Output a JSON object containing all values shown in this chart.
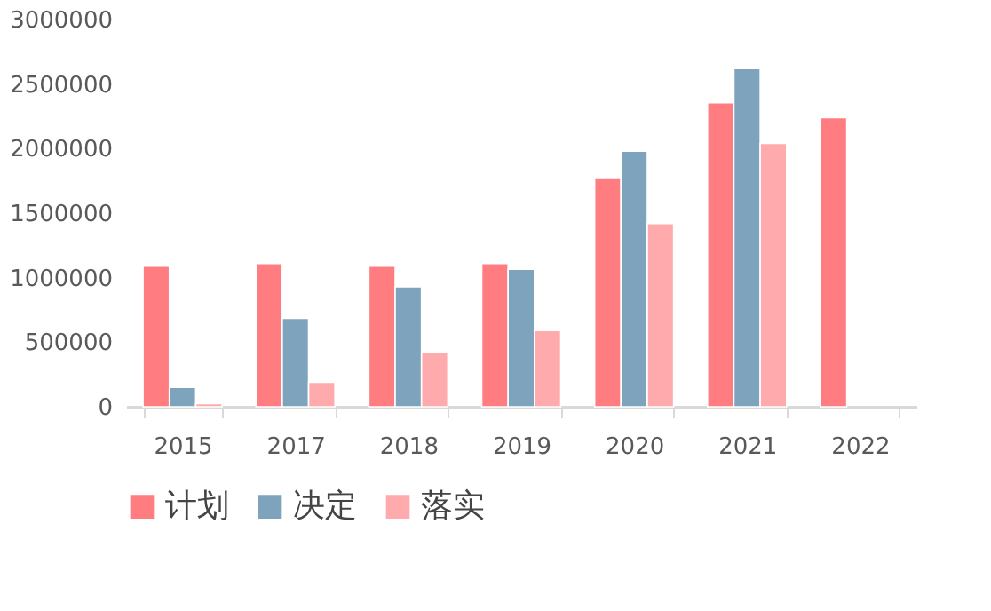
{
  "chart_data": {
    "type": "bar",
    "categories": [
      "2015",
      "2017",
      "2018",
      "2019",
      "2020",
      "2021",
      "2022"
    ],
    "series": [
      {
        "name": "计划",
        "color": "#ff7c80",
        "values": [
          1090000,
          1110000,
          1090000,
          1110000,
          1775000,
          2355000,
          2240000
        ]
      },
      {
        "name": "决定",
        "color": "#7ea3bc",
        "values": [
          150000,
          685000,
          930000,
          1065000,
          1980000,
          2620000,
          null
        ]
      },
      {
        "name": "落实",
        "color": "#ffaaad",
        "values": [
          25000,
          190000,
          420000,
          590000,
          1420000,
          2040000,
          null
        ]
      }
    ],
    "ylim": [
      0,
      3000000
    ],
    "yticks": [
      0,
      500000,
      1000000,
      1500000,
      2000000,
      2500000,
      3000000
    ],
    "grid": false,
    "legend": "bottom"
  }
}
